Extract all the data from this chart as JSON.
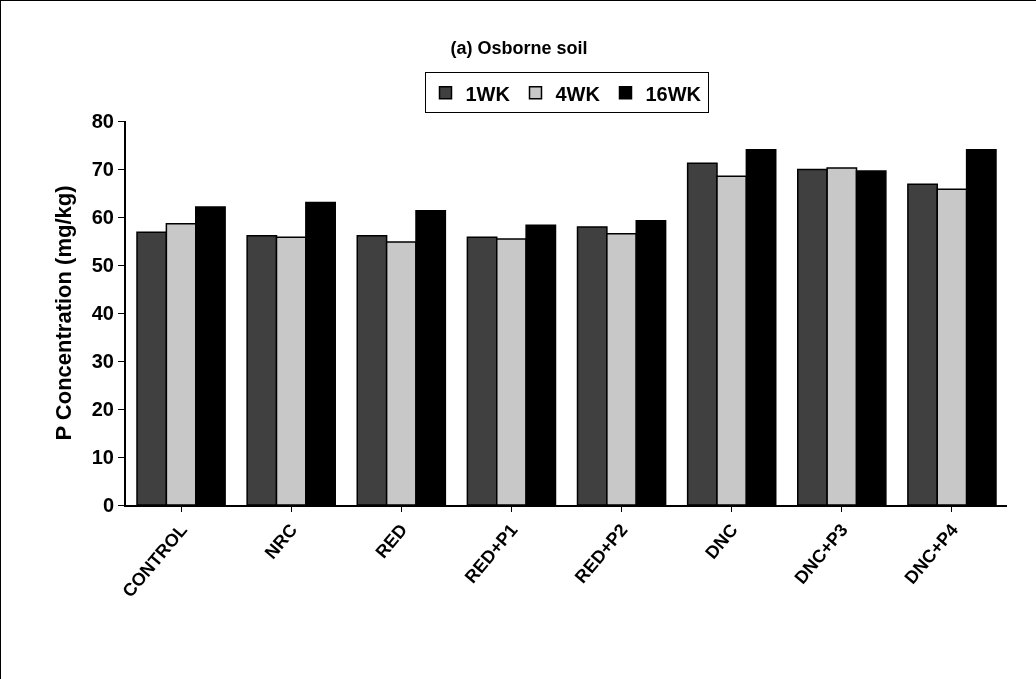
{
  "chart_data": {
    "type": "bar",
    "title": "(a) Osborne soil",
    "ylabel": "P Concentration (mg/kg)",
    "categories": [
      "CONTROL",
      "NRC",
      "RED",
      "RED+P1",
      "RED+P2",
      "DNC",
      "DNC+P3",
      "DNC+P4"
    ],
    "series": [
      {
        "name": "1WK",
        "color": "#404040",
        "values": [
          56.8,
          56.1,
          56.1,
          55.8,
          57.9,
          71.2,
          69.9,
          66.8
        ]
      },
      {
        "name": "4WK",
        "color": "#c8c8c8",
        "values": [
          58.6,
          55.8,
          54.8,
          55.4,
          56.5,
          68.5,
          70.2,
          65.8
        ]
      },
      {
        "name": "16WK",
        "color": "#000000",
        "values": [
          62.1,
          63.0,
          61.3,
          58.3,
          59.2,
          74.0,
          69.6,
          74.0
        ]
      }
    ],
    "ylim": [
      0,
      80
    ],
    "yticks": [
      0,
      10,
      20,
      30,
      40,
      50,
      60,
      70,
      80
    ],
    "grid": false,
    "legend": "top"
  }
}
